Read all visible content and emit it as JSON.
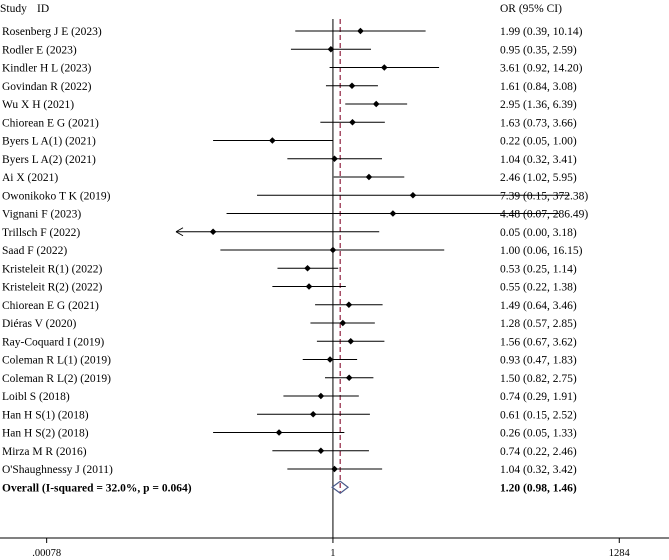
{
  "chart_data": {
    "type": "forest",
    "header": {
      "study": "Study",
      "id": "ID",
      "or": "OR (95% CI)"
    },
    "x_axis": {
      "scale": "log",
      "range": [
        0.000243,
        4450
      ],
      "ticks": [
        {
          "label": ".00078",
          "value": 0.00078
        },
        {
          "label": "1",
          "value": 1
        },
        {
          "label": "1284",
          "value": 1284
        }
      ],
      "reference": 1,
      "overall_line": 1.2
    },
    "studies": [
      {
        "label": "Rosenberg J E (2023)",
        "or": 1.99,
        "lo": 0.39,
        "hi": 10.14,
        "text": "1.99 (0.39, 10.14)"
      },
      {
        "label": "Rodler E (2023)",
        "or": 0.95,
        "lo": 0.35,
        "hi": 2.59,
        "text": "0.95 (0.35, 2.59)"
      },
      {
        "label": "Kindler H L (2023)",
        "or": 3.61,
        "lo": 0.92,
        "hi": 14.2,
        "text": "3.61 (0.92, 14.20)"
      },
      {
        "label": "Govindan R (2022)",
        "or": 1.61,
        "lo": 0.84,
        "hi": 3.08,
        "text": "1.61 (0.84, 3.08)"
      },
      {
        "label": "Wu X H (2021)",
        "or": 2.95,
        "lo": 1.36,
        "hi": 6.39,
        "text": "2.95 (1.36, 6.39)"
      },
      {
        "label": "Chiorean E G (2021)",
        "or": 1.63,
        "lo": 0.73,
        "hi": 3.66,
        "text": "1.63 (0.73, 3.66)"
      },
      {
        "label": "Byers L A(1) (2021)",
        "or": 0.22,
        "lo": 0.05,
        "hi": 1.0,
        "text": "0.22 (0.05, 1.00)"
      },
      {
        "label": "Byers L A(2) (2021)",
        "or": 1.04,
        "lo": 0.32,
        "hi": 3.41,
        "text": "1.04 (0.32, 3.41)"
      },
      {
        "label": "Ai X (2021)",
        "or": 2.46,
        "lo": 1.02,
        "hi": 5.95,
        "text": "2.46 (1.02, 5.95)"
      },
      {
        "label": "Owonikoko T K (2019)",
        "or": 7.39,
        "lo": 0.15,
        "hi": 372.38,
        "text": "7.39 (0.15, 372.38)"
      },
      {
        "label": "Vignani F (2023)",
        "or": 4.48,
        "lo": 0.07,
        "hi": 286.49,
        "text": "4.48 (0.07, 286.49)"
      },
      {
        "label": "Trillsch F (2022)",
        "or": 0.05,
        "lo": 0.0,
        "hi": 3.18,
        "text": "0.05 (0.00, 3.18)",
        "arrow_left": true
      },
      {
        "label": "Saad F  (2022)",
        "or": 1.0,
        "lo": 0.06,
        "hi": 16.15,
        "text": "1.00 (0.06, 16.15)"
      },
      {
        "label": "Kristeleit R(1) (2022)",
        "or": 0.53,
        "lo": 0.25,
        "hi": 1.14,
        "text": "0.53 (0.25, 1.14)"
      },
      {
        "label": "Kristeleit R(2) (2022)",
        "or": 0.55,
        "lo": 0.22,
        "hi": 1.38,
        "text": "0.55 (0.22, 1.38)"
      },
      {
        "label": "Chiorean E G  (2021)",
        "or": 1.49,
        "lo": 0.64,
        "hi": 3.46,
        "text": "1.49 (0.64, 3.46)"
      },
      {
        "label": "Diéras V (2020)",
        "or": 1.28,
        "lo": 0.57,
        "hi": 2.85,
        "text": "1.28 (0.57, 2.85)"
      },
      {
        "label": "Ray-Coquard I (2019)",
        "or": 1.56,
        "lo": 0.67,
        "hi": 3.62,
        "text": "1.56 (0.67, 3.62)"
      },
      {
        "label": "Coleman R L(1) (2019)",
        "or": 0.93,
        "lo": 0.47,
        "hi": 1.83,
        "text": "0.93 (0.47, 1.83)"
      },
      {
        "label": "Coleman R L(2) (2019)",
        "or": 1.5,
        "lo": 0.82,
        "hi": 2.75,
        "text": "1.50 (0.82, 2.75)"
      },
      {
        "label": "Loibl S (2018)",
        "or": 0.74,
        "lo": 0.29,
        "hi": 1.91,
        "text": "0.74 (0.29, 1.91)"
      },
      {
        "label": "Han H S(1) (2018)",
        "or": 0.61,
        "lo": 0.15,
        "hi": 2.52,
        "text": "0.61 (0.15, 2.52)"
      },
      {
        "label": "Han H S(2) (2018)",
        "or": 0.26,
        "lo": 0.05,
        "hi": 1.33,
        "text": "0.26 (0.05, 1.33)"
      },
      {
        "label": "Mirza M R (2016)",
        "or": 0.74,
        "lo": 0.22,
        "hi": 2.46,
        "text": "0.74 (0.22, 2.46)"
      },
      {
        "label": "O'Shaughnessy J (2011)",
        "or": 1.04,
        "lo": 0.32,
        "hi": 3.42,
        "text": "1.04 (0.32, 3.42)"
      }
    ],
    "overall": {
      "label": "Overall  (I-squared = 32.0%, p = 0.064)",
      "or": 1.2,
      "lo": 0.98,
      "hi": 1.46,
      "text": "1.20 (0.98, 1.46)"
    },
    "colors": {
      "diamond": "#4a5a8a",
      "overall_line": "#a0405a",
      "ink": "#000000"
    }
  }
}
